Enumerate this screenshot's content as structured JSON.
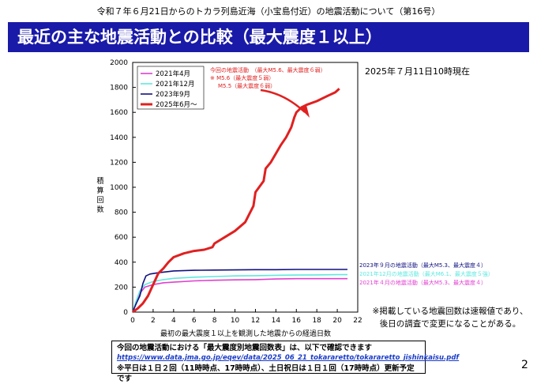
{
  "header": {
    "text": "令和７年６月21日からのトカラ列島近海（小宝島付近）の地震活動について（第16号）"
  },
  "title": "最近の主な地震活動との比較（最大震度１以上）",
  "timestamp": "2025年７月11日10時現在",
  "notes": [
    "※掲載している地震回数は速報値であり、",
    "後日の調査で変更になることがある。"
  ],
  "info_box": {
    "line1": "今回の地震活動における「最大震度別地震回数表」は、以下で確認できます",
    "url": "https://www.data.jma.go.jp/eqev/data/2025_06_21_tokararetto/tokararetto_jishinkaisu.pdf",
    "line3": "※平日は１日２回（11時時点、17時時点）、土日祝日は１日１回（17時時点）更新予定です"
  },
  "page_number": "2",
  "colors": {
    "title_band": "#1a1aa8",
    "s2021_4": "#e040d0",
    "s2021_12": "#60e8e0",
    "s2023_9": "#101080",
    "s2025_6": "#e02020"
  },
  "chart_data": {
    "type": "line",
    "xlabel": "最初の最大震度１以上を観測した地震からの経過日数",
    "ylabel": "積算回数",
    "xlim": [
      0,
      22
    ],
    "ylim": [
      0,
      2000
    ],
    "x_ticks": [
      0,
      2,
      4,
      6,
      8,
      10,
      12,
      14,
      16,
      18,
      20,
      22
    ],
    "y_ticks": [
      0,
      200,
      400,
      600,
      800,
      1000,
      1200,
      1400,
      1600,
      1800,
      2000
    ],
    "series": [
      {
        "name": "2021年4月",
        "color_key": "s2021_4",
        "points": [
          [
            0,
            0
          ],
          [
            0.3,
            60
          ],
          [
            0.7,
            150
          ],
          [
            1.2,
            200
          ],
          [
            2,
            220
          ],
          [
            3,
            235
          ],
          [
            4,
            240
          ],
          [
            6,
            250
          ],
          [
            8,
            255
          ],
          [
            10,
            258
          ],
          [
            12,
            260
          ],
          [
            14,
            265
          ],
          [
            16,
            268
          ],
          [
            18,
            268
          ],
          [
            20,
            268
          ],
          [
            21,
            268
          ]
        ],
        "label": "2021年４月の地震活動（最大M5.3、最大震度４）"
      },
      {
        "name": "2021年12月",
        "color_key": "s2021_12",
        "points": [
          [
            0,
            0
          ],
          [
            0.3,
            80
          ],
          [
            0.7,
            170
          ],
          [
            1.2,
            220
          ],
          [
            2,
            245
          ],
          [
            3,
            260
          ],
          [
            4,
            270
          ],
          [
            6,
            280
          ],
          [
            8,
            285
          ],
          [
            10,
            290
          ],
          [
            12,
            292
          ],
          [
            14,
            295
          ],
          [
            16,
            297
          ],
          [
            18,
            298
          ],
          [
            20,
            300
          ],
          [
            21,
            300
          ]
        ],
        "label": "2021年12月の地震活動（最大M6.1、最大震度５強）"
      },
      {
        "name": "2023年9月",
        "color_key": "s2023_9",
        "points": [
          [
            0,
            0
          ],
          [
            0.3,
            60
          ],
          [
            0.7,
            130
          ],
          [
            1,
            230
          ],
          [
            1.3,
            290
          ],
          [
            1.7,
            305
          ],
          [
            2.5,
            315
          ],
          [
            4,
            330
          ],
          [
            6,
            335
          ],
          [
            8,
            337
          ],
          [
            10,
            338
          ],
          [
            12,
            340
          ],
          [
            14,
            340
          ],
          [
            16,
            342
          ],
          [
            18,
            342
          ],
          [
            20,
            342
          ],
          [
            21,
            342
          ]
        ],
        "label": "2023年９月の地震活動（最大M5.3、最大震度４）"
      },
      {
        "name": "2025年6月～",
        "color_key": "s2025_6",
        "points": [
          [
            0,
            0
          ],
          [
            0.5,
            30
          ],
          [
            1,
            70
          ],
          [
            1.5,
            130
          ],
          [
            2,
            220
          ],
          [
            2.5,
            310
          ],
          [
            3,
            350
          ],
          [
            3.5,
            400
          ],
          [
            4,
            440
          ],
          [
            5,
            470
          ],
          [
            6,
            490
          ],
          [
            7,
            500
          ],
          [
            7.8,
            520
          ],
          [
            8,
            550
          ],
          [
            9,
            600
          ],
          [
            10,
            650
          ],
          [
            11,
            720
          ],
          [
            11.8,
            850
          ],
          [
            12,
            960
          ],
          [
            12.8,
            1050
          ],
          [
            13,
            1150
          ],
          [
            13.5,
            1200
          ],
          [
            14,
            1270
          ],
          [
            14.5,
            1340
          ],
          [
            15,
            1400
          ],
          [
            15.5,
            1480
          ],
          [
            15.8,
            1560
          ],
          [
            16,
            1600
          ],
          [
            16.5,
            1640
          ],
          [
            17,
            1660
          ],
          [
            18,
            1690
          ],
          [
            19,
            1730
          ],
          [
            19.8,
            1760
          ],
          [
            20.2,
            1790
          ]
        ],
        "label": ""
      }
    ],
    "legend_position": "top-left",
    "annotation": {
      "title": "今回の地震活動　（最大M5.6、最大震度６弱）",
      "line2": "※ M5.6（最大震度５弱）",
      "line3": "M5.5（最大震度６弱）"
    }
  }
}
